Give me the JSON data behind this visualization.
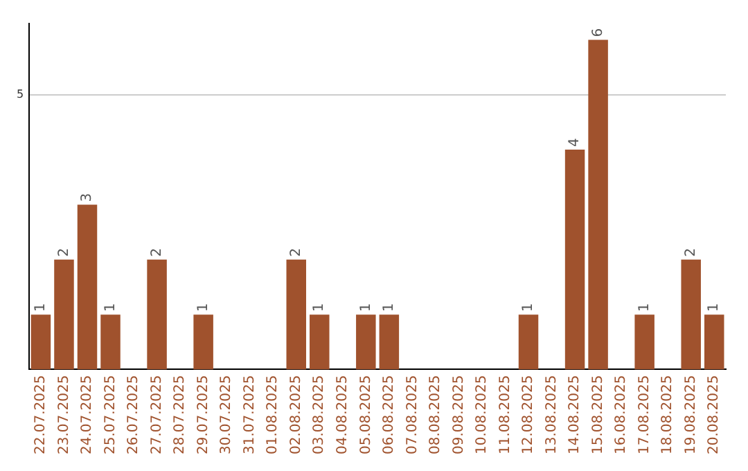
{
  "chart_data": {
    "type": "bar",
    "categories": [
      "22.07.2025",
      "23.07.2025",
      "24.07.2025",
      "25.07.2025",
      "26.07.2025",
      "27.07.2025",
      "28.07.2025",
      "29.07.2025",
      "30.07.2025",
      "31.07.2025",
      "01.08.2025",
      "02.08.2025",
      "03.08.2025",
      "04.08.2025",
      "05.08.2025",
      "06.08.2025",
      "07.08.2025",
      "08.08.2025",
      "09.08.2025",
      "10.08.2025",
      "11.08.2025",
      "12.08.2025",
      "13.08.2025",
      "14.08.2025",
      "15.08.2025",
      "16.08.2025",
      "17.08.2025",
      "18.08.2025",
      "19.08.2025",
      "20.08.2025"
    ],
    "values": [
      1,
      2,
      3,
      1,
      0,
      2,
      0,
      1,
      0,
      0,
      0,
      2,
      1,
      0,
      1,
      1,
      0,
      0,
      0,
      0,
      0,
      1,
      0,
      4,
      6,
      0,
      1,
      0,
      2,
      1
    ],
    "value_labels": [
      "1",
      "2",
      "3",
      "1",
      null,
      "2",
      null,
      "1",
      null,
      null,
      null,
      "2",
      "1",
      null,
      "1",
      "1",
      null,
      null,
      null,
      null,
      null,
      "1",
      null,
      "4",
      "6",
      null,
      "1",
      null,
      "2",
      "1"
    ],
    "color": "#a0522d",
    "ylim": [
      0,
      6.3
    ],
    "yticks": [
      5
    ],
    "grid": "y"
  }
}
